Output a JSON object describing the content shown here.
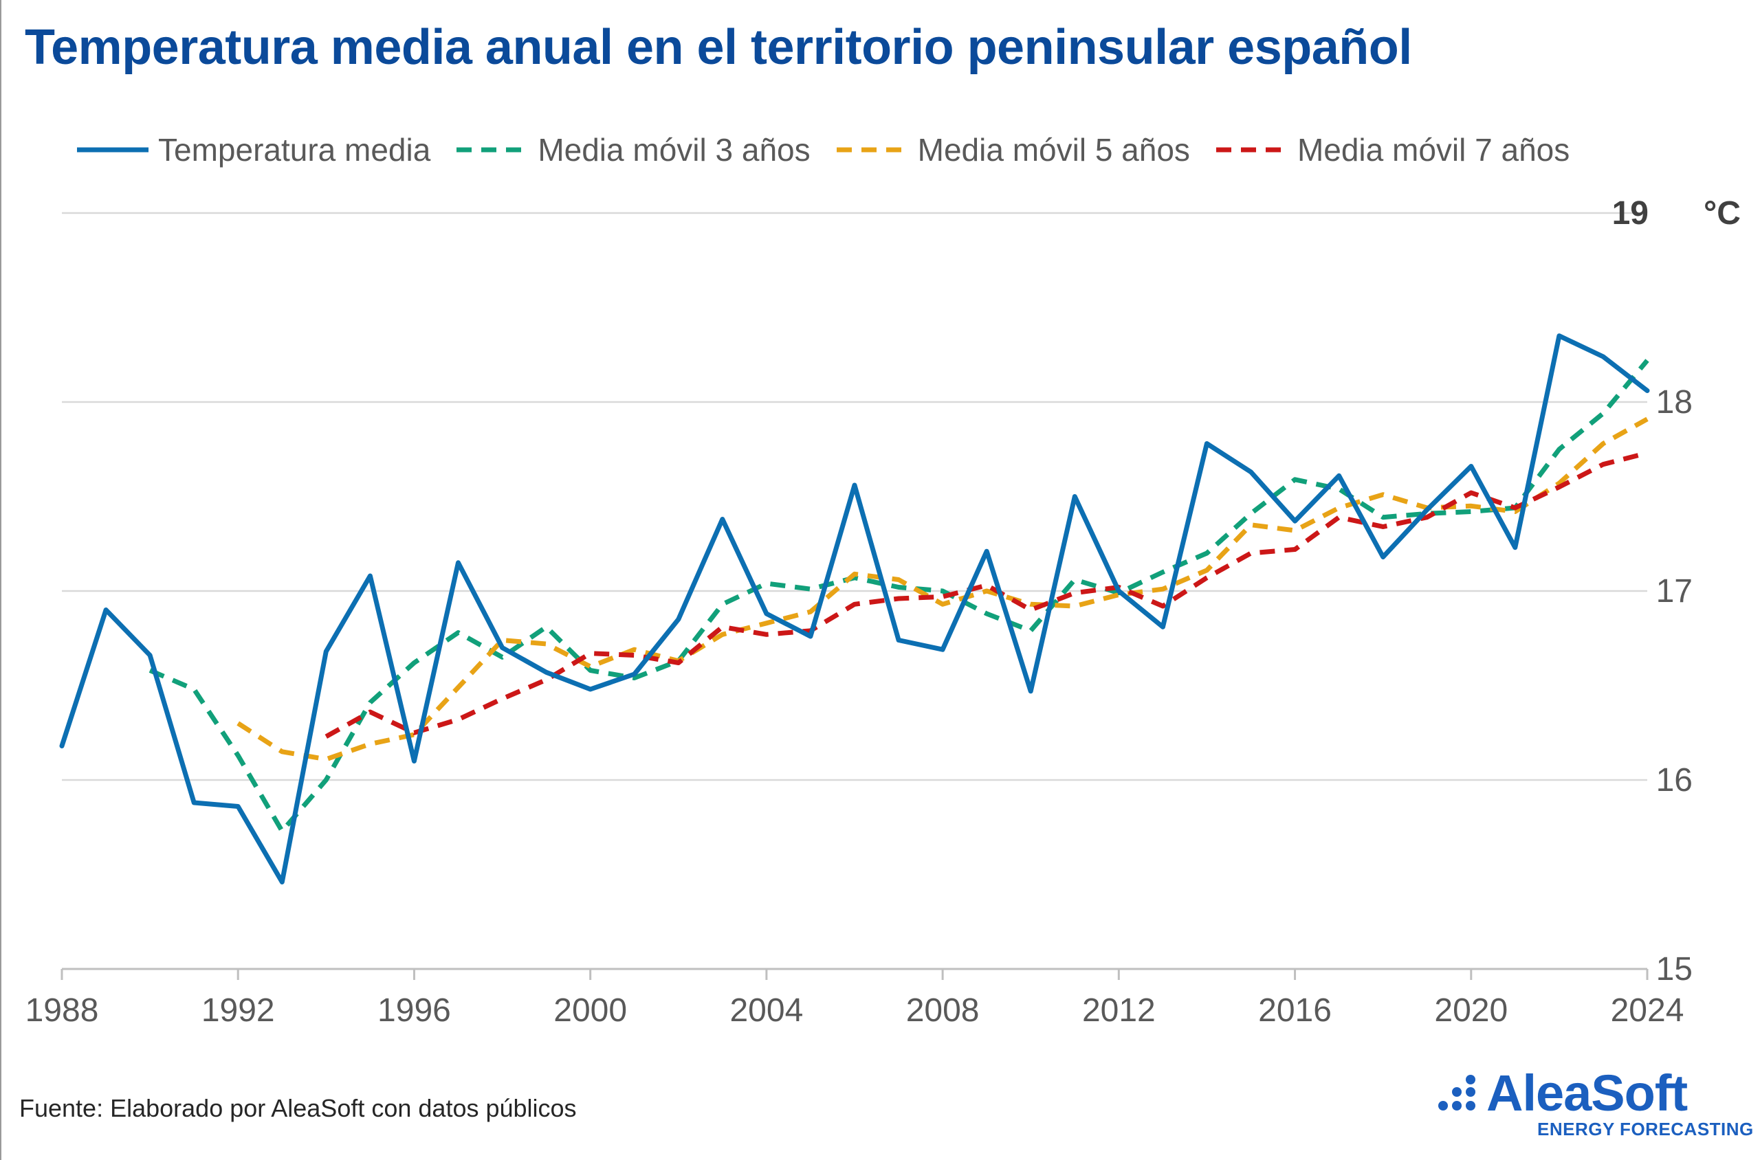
{
  "chart_data": {
    "type": "line",
    "title": "Temperatura media anual en el territorio peninsular español",
    "xlabel": "",
    "ylabel": "",
    "y_unit": "°C",
    "xlim": [
      1988,
      2024
    ],
    "ylim": [
      15,
      19
    ],
    "x_ticks": [
      1988,
      1992,
      1996,
      2000,
      2004,
      2008,
      2012,
      2016,
      2020,
      2024
    ],
    "y_ticks": [
      15,
      16,
      17,
      18,
      19
    ],
    "grid": "horizontal",
    "legend_position": "top",
    "x": [
      1988,
      1989,
      1990,
      1991,
      1992,
      1993,
      1994,
      1995,
      1996,
      1997,
      1998,
      1999,
      2000,
      2001,
      2002,
      2003,
      2004,
      2005,
      2006,
      2007,
      2008,
      2009,
      2010,
      2011,
      2012,
      2013,
      2014,
      2015,
      2016,
      2017,
      2018,
      2019,
      2020,
      2021,
      2022,
      2023,
      2024
    ],
    "series": [
      {
        "name": "Temperatura media",
        "color": "#0c6fb2",
        "style": "solid",
        "values": [
          16.18,
          16.9,
          16.66,
          15.88,
          15.86,
          15.46,
          16.68,
          17.08,
          16.1,
          17.15,
          16.7,
          16.57,
          16.48,
          16.56,
          16.85,
          17.38,
          16.88,
          16.76,
          17.56,
          16.74,
          16.69,
          17.21,
          16.47,
          17.5,
          17.0,
          16.81,
          17.78,
          17.63,
          17.37,
          17.61,
          17.18,
          17.43,
          17.66,
          17.23,
          18.35,
          18.24,
          18.06
        ]
      },
      {
        "name": "Media móvil 3 años",
        "color": "#11a07a",
        "style": "dashed",
        "values": [
          null,
          null,
          16.58,
          16.48,
          16.13,
          15.73,
          16.0,
          16.41,
          16.62,
          16.78,
          16.65,
          16.81,
          16.58,
          16.54,
          16.63,
          16.93,
          17.04,
          17.01,
          17.07,
          17.02,
          17.0,
          16.88,
          16.79,
          17.06,
          16.99,
          17.1,
          17.2,
          17.41,
          17.59,
          17.54,
          17.39,
          17.41,
          17.42,
          17.44,
          17.75,
          17.94,
          18.22
        ]
      },
      {
        "name": "Media móvil 5 años",
        "color": "#e8a316",
        "style": "dashed",
        "values": [
          null,
          null,
          null,
          null,
          16.3,
          16.15,
          16.11,
          16.19,
          16.24,
          16.49,
          16.74,
          16.72,
          16.6,
          16.69,
          16.63,
          16.77,
          16.83,
          16.89,
          17.09,
          17.06,
          16.93,
          17.0,
          16.93,
          16.92,
          16.98,
          17.01,
          17.11,
          17.35,
          17.32,
          17.44,
          17.51,
          17.44,
          17.45,
          17.42,
          17.57,
          17.78,
          17.91
        ]
      },
      {
        "name": "Media móvil 7 años",
        "color": "#cc1717",
        "style": "dashed",
        "values": [
          null,
          null,
          null,
          null,
          null,
          null,
          16.23,
          16.36,
          16.25,
          16.32,
          16.43,
          16.53,
          16.67,
          16.66,
          16.62,
          16.81,
          16.77,
          16.79,
          16.93,
          16.96,
          16.97,
          17.03,
          16.9,
          16.99,
          17.02,
          16.92,
          17.07,
          17.2,
          17.22,
          17.39,
          17.34,
          17.39,
          17.52,
          17.44,
          17.55,
          17.67,
          17.73
        ]
      }
    ]
  },
  "source": "Fuente: Elaborado por AleaSoft con datos públicos",
  "logo": {
    "name": "AleaSoft",
    "tagline": "ENERGY FORECASTING",
    "color": "#1b5fbf"
  }
}
